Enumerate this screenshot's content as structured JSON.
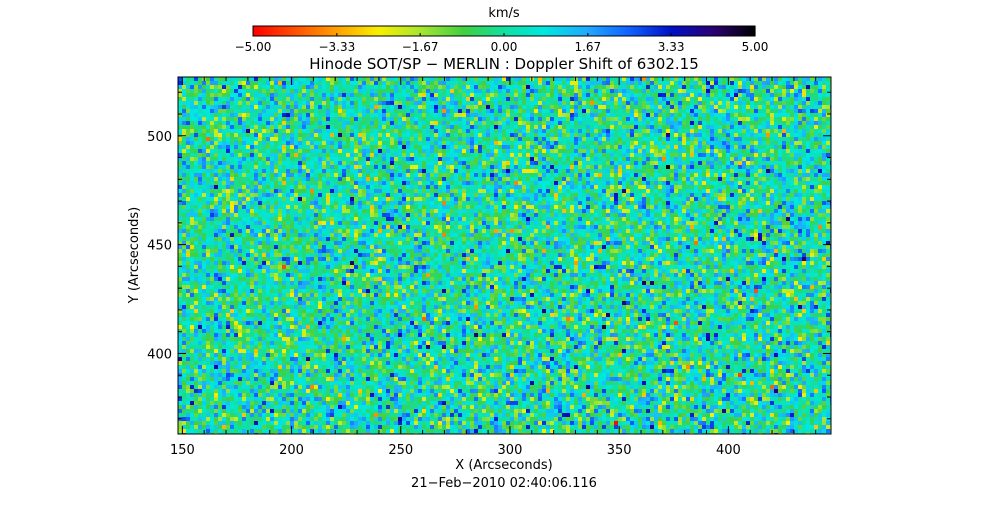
{
  "chart_data": {
    "type": "heatmap",
    "title": "Hinode SOT/SP − MERLIN : Doppler Shift of 6302.15",
    "xlabel": "X (Arcseconds)",
    "ylabel": "Y (Arcseconds)",
    "date": "21−Feb−2010 02:40:06.116",
    "xlim": [
      148,
      447
    ],
    "ylim": [
      363,
      527
    ],
    "x_ticks": [
      150,
      200,
      250,
      300,
      350,
      400
    ],
    "y_ticks": [
      400,
      450,
      500
    ],
    "x_tick_labels": [
      "150",
      "200",
      "250",
      "300",
      "350",
      "400"
    ],
    "y_tick_labels": [
      "400",
      "450",
      "500"
    ],
    "colorbar": {
      "unit": "km/s",
      "range": [
        -5.0,
        5.0
      ],
      "ticks": [
        -5.0,
        -3.33,
        -1.67,
        0.0,
        1.67,
        3.33,
        5.0
      ],
      "tick_labels": [
        "−5.00",
        "−3.33",
        "−1.67",
        "0.00",
        "1.67",
        "3.33",
        "5.00"
      ],
      "colormap": [
        {
          "v": -5.0,
          "color": "#ff0000"
        },
        {
          "v": -3.33,
          "color": "#ffa000"
        },
        {
          "v": -2.5,
          "color": "#f8f000"
        },
        {
          "v": -1.67,
          "color": "#a8e630"
        },
        {
          "v": -0.8,
          "color": "#40d040"
        },
        {
          "v": 0.0,
          "color": "#10e0a0"
        },
        {
          "v": 0.8,
          "color": "#00e8e0"
        },
        {
          "v": 1.67,
          "color": "#20a8ff"
        },
        {
          "v": 2.5,
          "color": "#1060ff"
        },
        {
          "v": 3.33,
          "color": "#0010c8"
        },
        {
          "v": 4.2,
          "color": "#2a0070"
        },
        {
          "v": 5.0,
          "color": "#000000"
        }
      ]
    },
    "field": {
      "distribution": "noise",
      "mean": 0.2,
      "stddev": 1.25
    }
  }
}
